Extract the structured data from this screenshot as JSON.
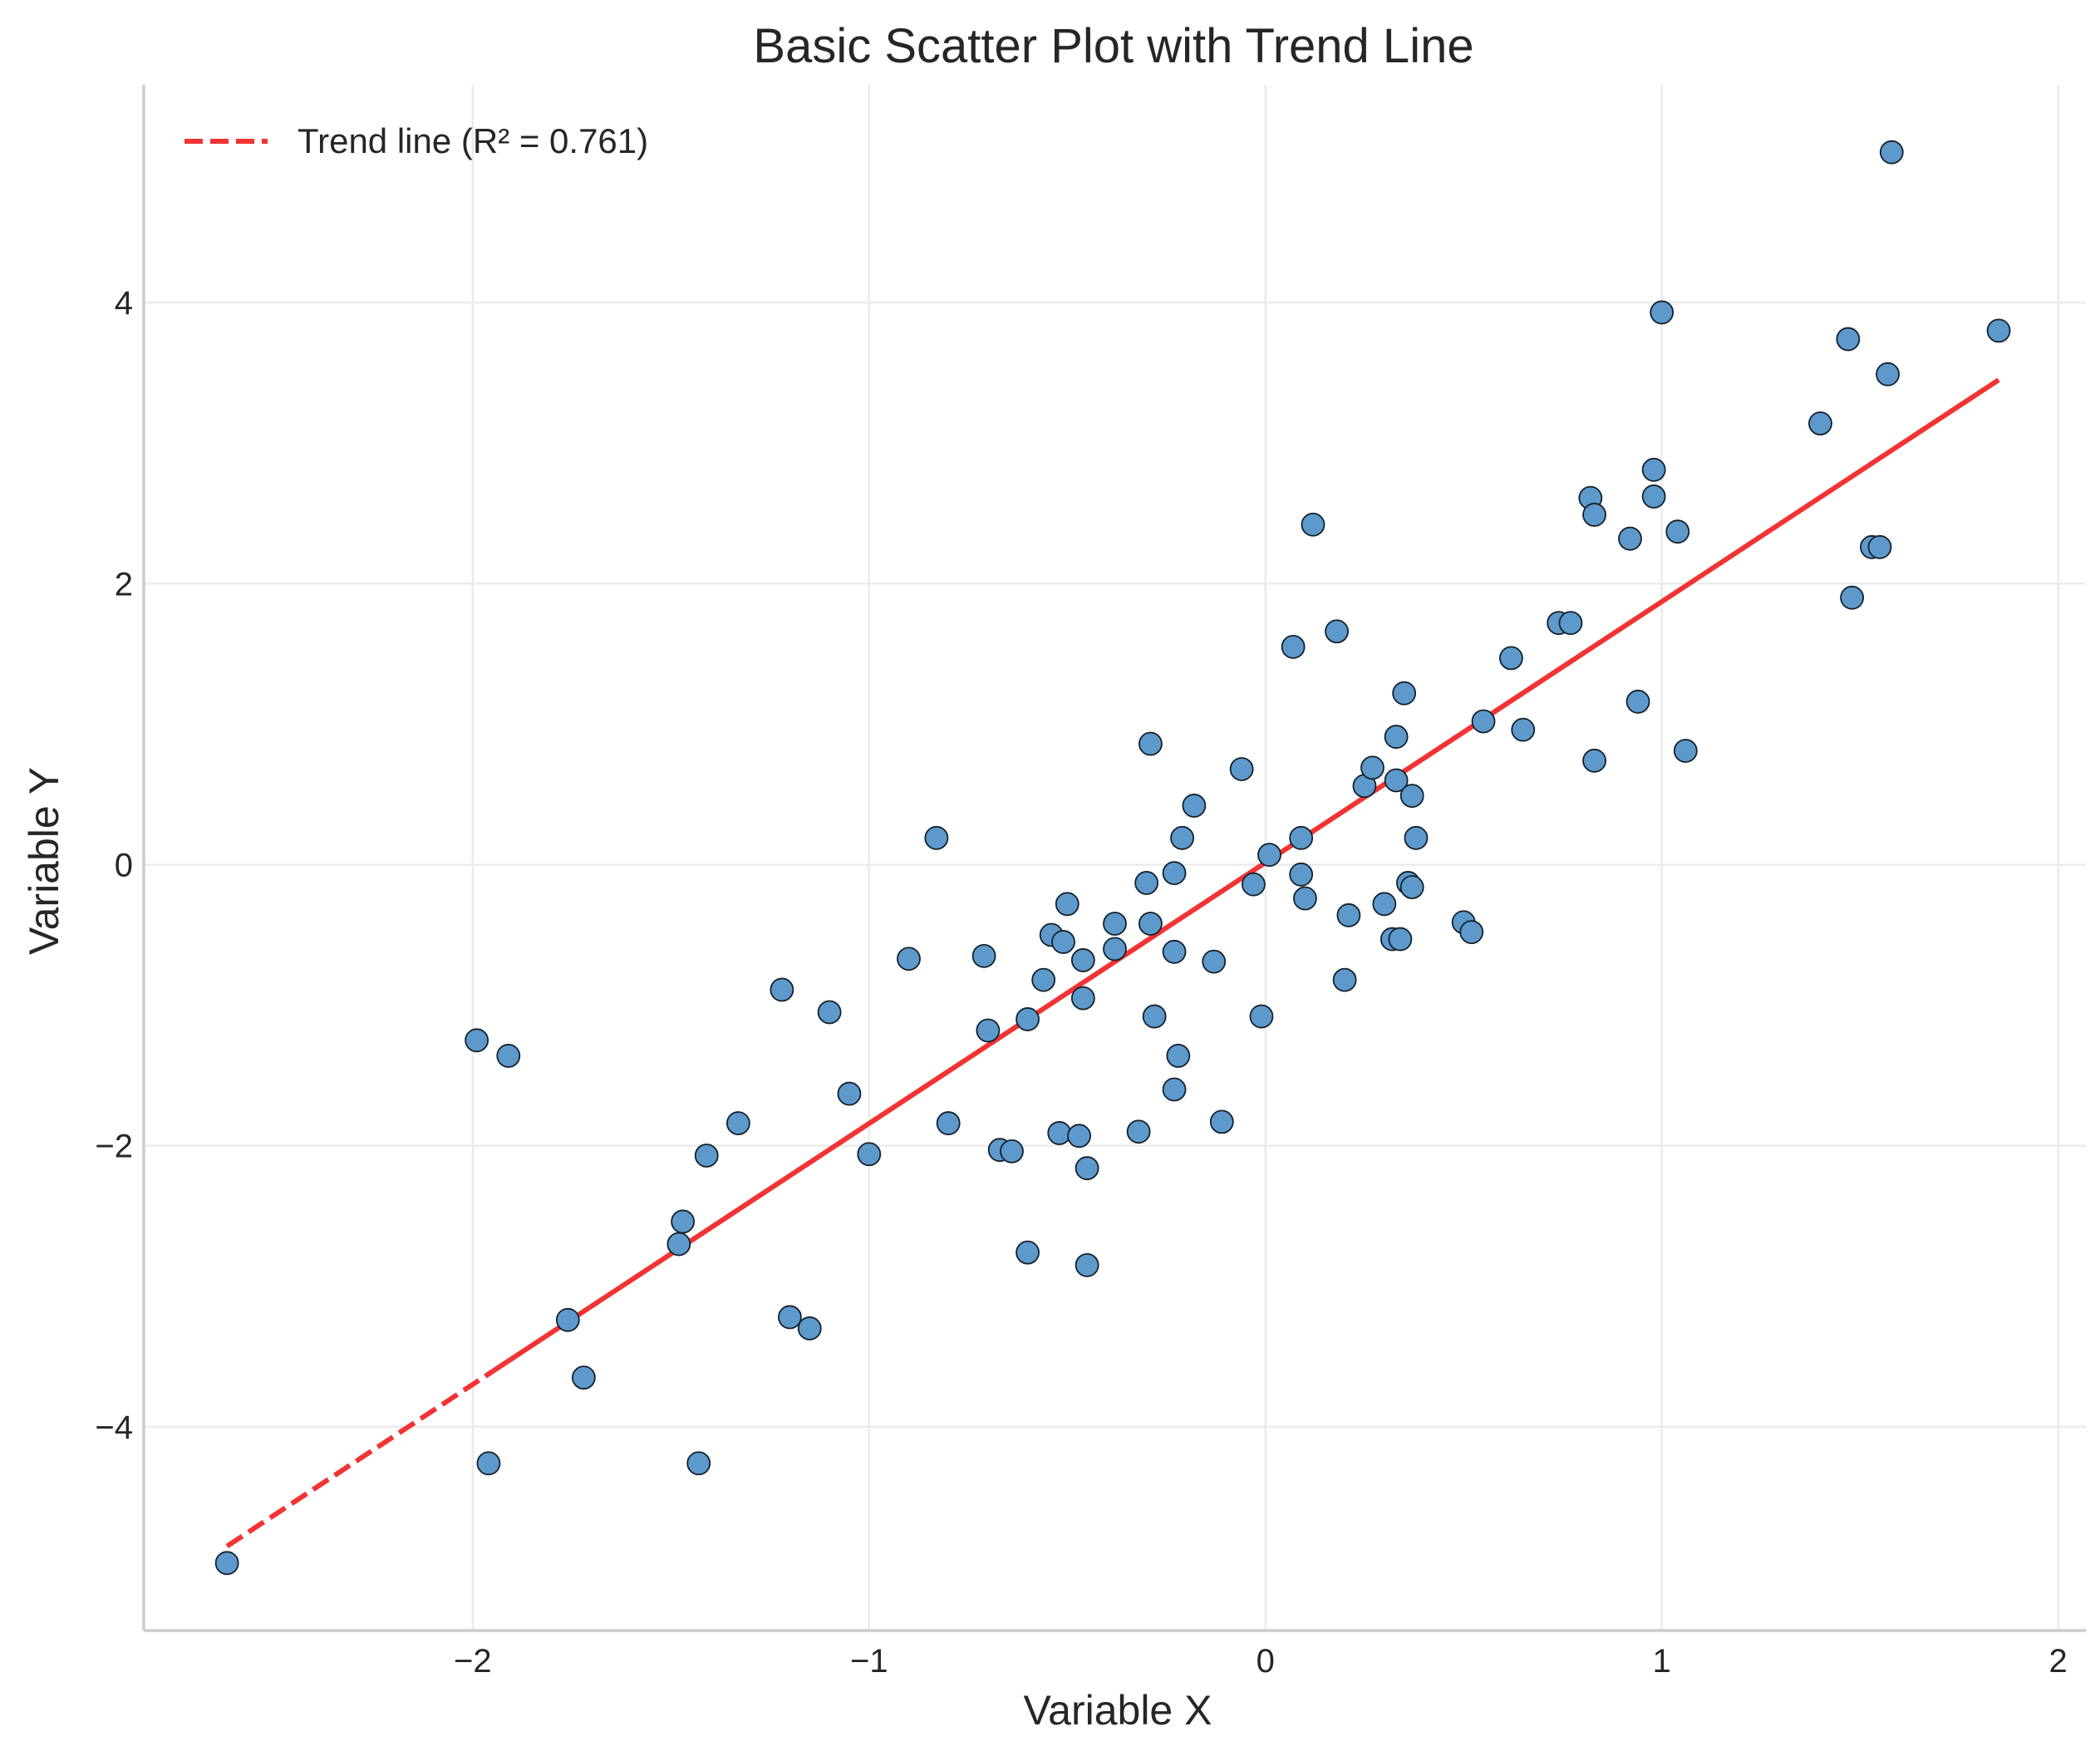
{
  "chart_data": {
    "type": "scatter",
    "title": "Basic Scatter Plot with Trend Line",
    "xlabel": "Variable X",
    "ylabel": "Variable Y",
    "xlim": [
      -2.83,
      2.07
    ],
    "ylim": [
      -5.45,
      5.55
    ],
    "xticks": [
      -2,
      -1,
      0,
      1,
      2
    ],
    "yticks": [
      -4,
      -2,
      0,
      2,
      4
    ],
    "xtick_labels": [
      "−2",
      "−1",
      "0",
      "1",
      "2"
    ],
    "ytick_labels": [
      "−4",
      "−2",
      "0",
      "2",
      "4"
    ],
    "grid": true,
    "legend_position": "upper-left",
    "colors": {
      "points": "#5d9acb",
      "point_edge": "#14202b",
      "trend": "#f23333",
      "grid": "#ebebeb",
      "spine": "#cccccc"
    },
    "series": [
      {
        "points": [
          [
            -2.62,
            -4.97
          ],
          [
            -1.99,
            -1.25
          ],
          [
            -1.96,
            -4.26
          ],
          [
            -1.91,
            -1.36
          ],
          [
            -1.76,
            -3.24
          ],
          [
            -1.72,
            -3.65
          ],
          [
            -1.48,
            -2.7
          ],
          [
            -1.47,
            -2.54
          ],
          [
            -1.43,
            -4.26
          ],
          [
            -1.41,
            -2.07
          ],
          [
            -1.33,
            -1.84
          ],
          [
            -1.22,
            -0.89
          ],
          [
            -1.2,
            -3.22
          ],
          [
            -1.15,
            -3.3
          ],
          [
            -1.1,
            -1.05
          ],
          [
            -1.05,
            -1.63
          ],
          [
            -1.0,
            -2.06
          ],
          [
            -0.9,
            -0.67
          ],
          [
            -0.83,
            0.19
          ],
          [
            -0.8,
            -1.84
          ],
          [
            -0.71,
            -0.65
          ],
          [
            -0.7,
            -1.18
          ],
          [
            -0.67,
            -2.03
          ],
          [
            -0.64,
            -2.04
          ],
          [
            -0.6,
            -2.76
          ],
          [
            -0.6,
            -1.1
          ],
          [
            -0.56,
            -0.82
          ],
          [
            -0.54,
            -0.5
          ],
          [
            -0.52,
            -1.91
          ],
          [
            -0.51,
            -0.55
          ],
          [
            -0.5,
            -0.28
          ],
          [
            -0.47,
            -1.93
          ],
          [
            -0.46,
            -0.68
          ],
          [
            -0.46,
            -0.95
          ],
          [
            -0.45,
            -2.16
          ],
          [
            -0.45,
            -2.85
          ],
          [
            -0.38,
            -0.6
          ],
          [
            -0.38,
            -0.42
          ],
          [
            -0.32,
            -1.9
          ],
          [
            -0.3,
            -0.13
          ],
          [
            -0.29,
            0.86
          ],
          [
            -0.29,
            -0.42
          ],
          [
            -0.28,
            -1.08
          ],
          [
            -0.23,
            -0.06
          ],
          [
            -0.23,
            -0.62
          ],
          [
            -0.23,
            -1.6
          ],
          [
            -0.22,
            -1.36
          ],
          [
            -0.21,
            0.19
          ],
          [
            -0.18,
            0.42
          ],
          [
            -0.13,
            -0.69
          ],
          [
            -0.11,
            -1.83
          ],
          [
            -0.06,
            0.68
          ],
          [
            -0.03,
            -0.14
          ],
          [
            -0.01,
            -1.08
          ],
          [
            0.01,
            0.07
          ],
          [
            0.07,
            1.55
          ],
          [
            0.09,
            0.19
          ],
          [
            0.09,
            -0.07
          ],
          [
            0.1,
            -0.24
          ],
          [
            0.12,
            2.42
          ],
          [
            0.18,
            1.66
          ],
          [
            0.2,
            -0.82
          ],
          [
            0.21,
            -0.36
          ],
          [
            0.25,
            0.56
          ],
          [
            0.27,
            0.69
          ],
          [
            0.3,
            -0.28
          ],
          [
            0.32,
            -0.53
          ],
          [
            0.33,
            0.91
          ],
          [
            0.33,
            0.6
          ],
          [
            0.34,
            -0.53
          ],
          [
            0.35,
            1.22
          ],
          [
            0.36,
            -0.13
          ],
          [
            0.37,
            0.49
          ],
          [
            0.37,
            -0.16
          ],
          [
            0.38,
            0.19
          ],
          [
            0.5,
            -0.41
          ],
          [
            0.52,
            -0.48
          ],
          [
            0.55,
            1.02
          ],
          [
            0.62,
            1.47
          ],
          [
            0.65,
            0.96
          ],
          [
            0.74,
            1.72
          ],
          [
            0.77,
            1.72
          ],
          [
            0.82,
            2.61
          ],
          [
            0.83,
            2.49
          ],
          [
            0.83,
            0.74
          ],
          [
            0.92,
            2.32
          ],
          [
            0.94,
            1.16
          ],
          [
            0.98,
            2.81
          ],
          [
            0.98,
            2.62
          ],
          [
            1.0,
            3.93
          ],
          [
            1.04,
            2.37
          ],
          [
            1.06,
            0.81
          ],
          [
            1.4,
            3.14
          ],
          [
            1.47,
            3.74
          ],
          [
            1.48,
            1.9
          ],
          [
            1.53,
            2.26
          ],
          [
            1.55,
            2.26
          ],
          [
            1.57,
            3.49
          ],
          [
            1.58,
            5.07
          ],
          [
            1.85,
            3.8
          ]
        ]
      }
    ],
    "trend": {
      "label": "Trend line (R² = 0.761)",
      "start": [
        -2.62,
        -4.85
      ],
      "end": [
        1.85,
        3.45
      ],
      "style": "dashed"
    }
  }
}
